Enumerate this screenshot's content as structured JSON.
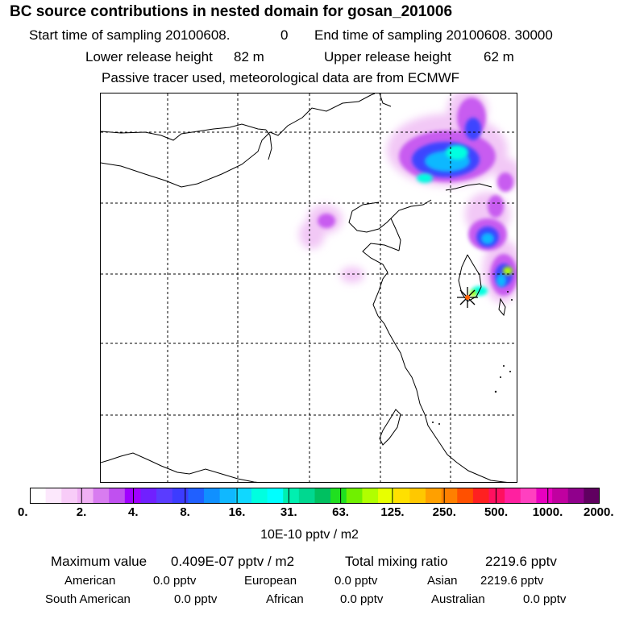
{
  "title": "BC  source contributions in nested domain for gosan_201006",
  "header": {
    "start_label": "Start time of sampling 20100608.",
    "start_hhmm": "0",
    "end_label": "End time of sampling 20100608. 30000",
    "lower_label": "Lower release height",
    "lower_value": "82 m",
    "upper_label": "Upper release height",
    "upper_value": "62 m",
    "note": "Passive tracer used, meteorological data are from ECMWF"
  },
  "colorbar": {
    "colors": [
      "#ffffff",
      "#fce8fc",
      "#f8ccf8",
      "#f0b0f4",
      "#d87cf0",
      "#c050f0",
      "#a000ff",
      "#7020ff",
      "#5a3cff",
      "#3c3cff",
      "#2060ff",
      "#1090ff",
      "#10b8ff",
      "#10d8ff",
      "#00ffe0",
      "#00ffff",
      "#00f0b0",
      "#00d890",
      "#00c060",
      "#20e020",
      "#70f000",
      "#b0ff00",
      "#e8ff00",
      "#ffe000",
      "#ffc800",
      "#ffa000",
      "#ff8000",
      "#ff5000",
      "#ff2020",
      "#ff1060",
      "#ff20a0",
      "#ff40c0",
      "#e800c0",
      "#c000a0",
      "#90008c",
      "#600060"
    ],
    "tick_labels": [
      "0.",
      "2.",
      "4.",
      "8.",
      "16.",
      "31.",
      "63.",
      "125.",
      "250.",
      "500.",
      "1000.",
      "2000."
    ],
    "units": "10E-10 pptv / m2"
  },
  "stats": {
    "max_label": "Maximum value",
    "max_value": "0.409E-07 pptv / m2",
    "total_label": "Total mixing ratio",
    "total_value": "2219.6 pptv"
  },
  "regions": [
    {
      "name": "American",
      "value": "0.0 pptv"
    },
    {
      "name": "European",
      "value": "0.0 pptv"
    },
    {
      "name": "Asian",
      "value": "2219.6 pptv"
    },
    {
      "name": "South American",
      "value": "0.0 pptv"
    },
    {
      "name": "African",
      "value": "0.0 pptv"
    },
    {
      "name": "Australian",
      "value": "0.0 pptv"
    }
  ]
}
